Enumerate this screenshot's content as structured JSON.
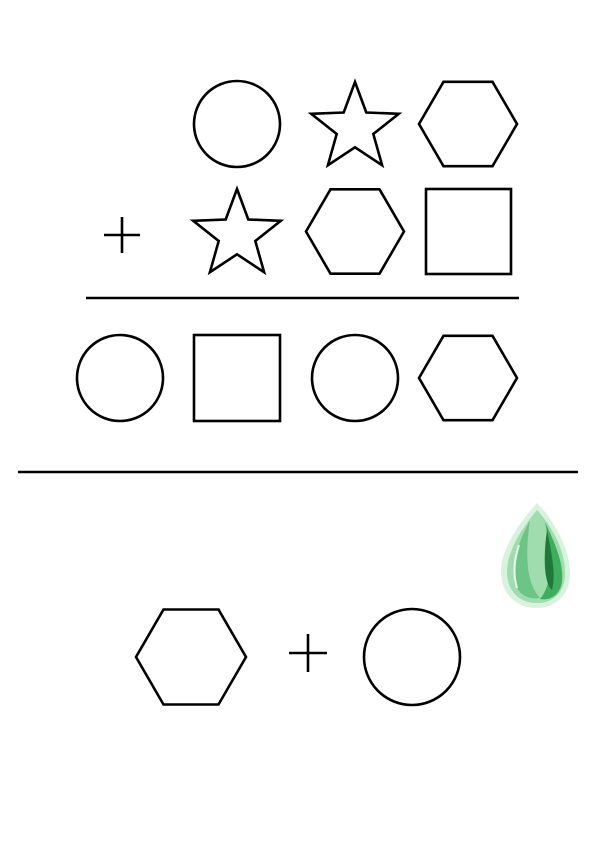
{
  "puzzle": {
    "addend_top": [
      "circle",
      "star",
      "hexagon"
    ],
    "operator_addition": "plus",
    "addend_bottom": [
      "star",
      "hexagon",
      "square"
    ],
    "sum_row": [
      "circle",
      "square",
      "circle",
      "hexagon"
    ],
    "question_pair": [
      "hexagon",
      "circle"
    ],
    "question_operator": "plus"
  },
  "decoration": {
    "icon": "green-gem-drop-icon",
    "colors": {
      "dark": "#1f7a3a",
      "mid": "#3fae5c",
      "light": "#9fdcae",
      "pale": "#d9f2de"
    }
  },
  "colors": {
    "stroke": "#000000",
    "background": "#ffffff"
  }
}
